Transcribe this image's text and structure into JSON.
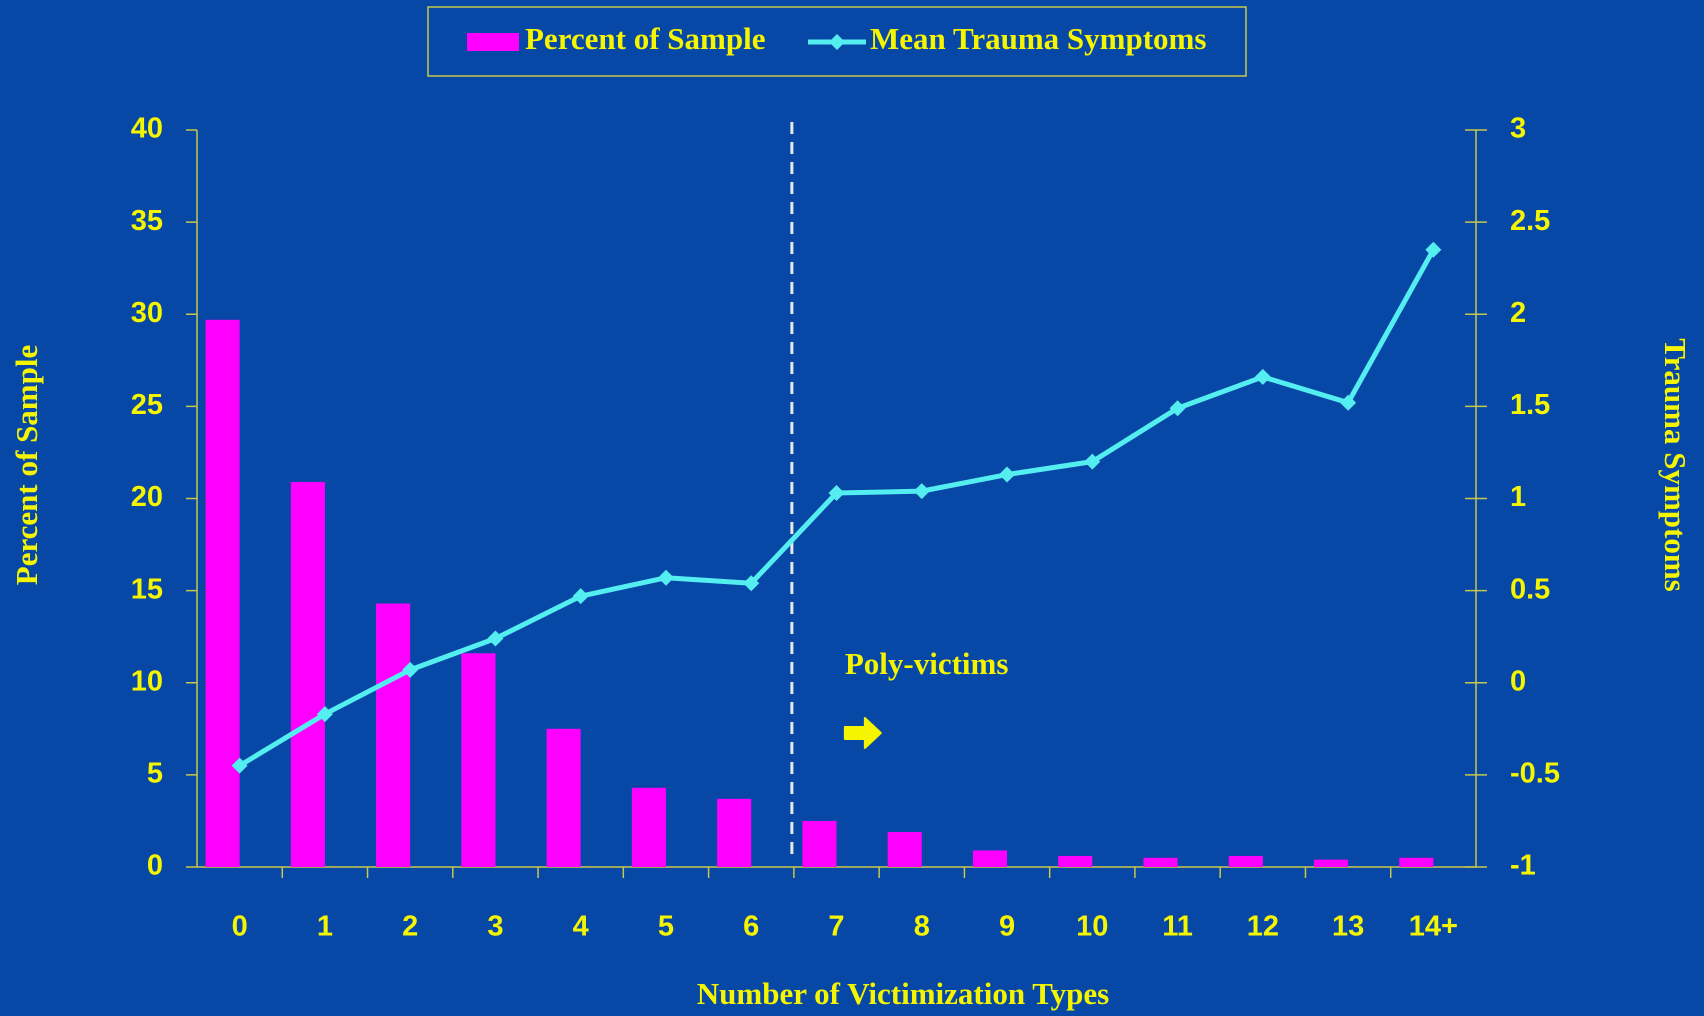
{
  "chart_data": {
    "type": "bar_line",
    "x_label": "Number of Victimization Types",
    "y_label": "Percent of Sample",
    "y2_label": "Trauma Symptoms",
    "annotation": "Poly-victims",
    "categories": [
      "0",
      "1",
      "2",
      "3",
      "4",
      "5",
      "6",
      "7",
      "8",
      "9",
      "10",
      "11",
      "12",
      "13",
      "14+"
    ],
    "series": [
      {
        "name": "Percent of Sample",
        "type": "bar",
        "color": "#ff00ff",
        "values": [
          29.7,
          20.9,
          14.3,
          11.6,
          7.5,
          4.3,
          3.7,
          2.5,
          1.9,
          0.9,
          0.6,
          0.5,
          0.6,
          0.4,
          0.5
        ]
      },
      {
        "name": "Mean Trauma Symptoms",
        "type": "line",
        "axis": "y2",
        "color": "#55eef0",
        "values": [
          -0.45,
          -0.17,
          0.07,
          0.24,
          0.47,
          0.57,
          0.54,
          1.03,
          1.04,
          1.13,
          1.2,
          1.49,
          1.66,
          1.52,
          2.35
        ]
      }
    ],
    "ylim": [
      0,
      40
    ],
    "yticks": [
      0,
      5,
      10,
      15,
      20,
      25,
      30,
      35,
      40
    ],
    "y2lim": [
      -1,
      3
    ],
    "y2ticks": [
      -1,
      -0.5,
      0,
      0.5,
      1,
      1.5,
      2,
      2.5,
      3
    ],
    "grid": false,
    "legend": "top"
  }
}
